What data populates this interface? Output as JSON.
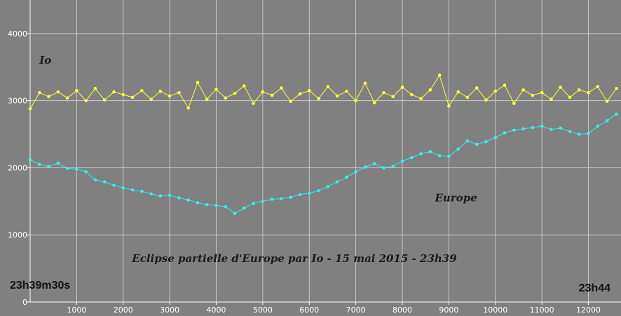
{
  "chart_data": {
    "type": "line",
    "title": "Eclipse partielle d'Europe par Io - 15 mai 2015 - 23h39",
    "start_label": "23h39m30s",
    "end_label": "23h44",
    "xlim": [
      0,
      12700
    ],
    "ylim": [
      0,
      4500
    ],
    "x_ticks": [
      "1000",
      "2000",
      "3000",
      "4000",
      "5000",
      "6000",
      "7000",
      "8000",
      "9000",
      "10000",
      "11000",
      "12000"
    ],
    "y_ticks": [
      "0",
      "1000",
      "2000",
      "3000",
      "4000"
    ],
    "grid": true,
    "colors": {
      "background": "#808080",
      "grid": "#c8c8c8",
      "io": "#ffff33",
      "europe": "#33eeee"
    },
    "series": [
      {
        "name": "Io",
        "label_at": [
          200,
          3550
        ],
        "x": [
          0,
          200,
          400,
          600,
          800,
          1000,
          1200,
          1400,
          1600,
          1800,
          2000,
          2200,
          2400,
          2600,
          2800,
          3000,
          3200,
          3400,
          3600,
          3800,
          4000,
          4200,
          4400,
          4600,
          4800,
          5000,
          5200,
          5400,
          5600,
          5800,
          6000,
          6200,
          6400,
          6600,
          6800,
          7000,
          7200,
          7400,
          7600,
          7800,
          8000,
          8200,
          8400,
          8600,
          8800,
          9000,
          9200,
          9400,
          9600,
          9800,
          10000,
          10200,
          10400,
          10600,
          10800,
          11000,
          11200,
          11400,
          11600,
          11800,
          12000,
          12200,
          12400,
          12600
        ],
        "values": [
          2880,
          3120,
          3060,
          3130,
          3040,
          3150,
          3000,
          3180,
          3010,
          3130,
          3090,
          3050,
          3150,
          3020,
          3140,
          3070,
          3120,
          2890,
          3270,
          3020,
          3170,
          3040,
          3110,
          3220,
          2960,
          3130,
          3080,
          3190,
          2990,
          3100,
          3150,
          3030,
          3210,
          3070,
          3140,
          3000,
          3260,
          2970,
          3120,
          3060,
          3200,
          3090,
          3030,
          3160,
          3380,
          2920,
          3130,
          3050,
          3190,
          3010,
          3140,
          3230,
          2960,
          3160,
          3080,
          3120,
          3020,
          3200,
          3050,
          3160,
          3120,
          3210,
          2990,
          3180
        ]
      },
      {
        "name": "Europe",
        "label_at": [
          8700,
          1500
        ],
        "x": [
          0,
          200,
          400,
          600,
          800,
          1000,
          1200,
          1400,
          1600,
          1800,
          2000,
          2200,
          2400,
          2600,
          2800,
          3000,
          3200,
          3400,
          3600,
          3800,
          4000,
          4200,
          4400,
          4600,
          4800,
          5000,
          5200,
          5400,
          5600,
          5800,
          6000,
          6200,
          6400,
          6600,
          6800,
          7000,
          7200,
          7400,
          7600,
          7800,
          8000,
          8200,
          8400,
          8600,
          8800,
          9000,
          9200,
          9400,
          9600,
          9800,
          10000,
          10200,
          10400,
          10600,
          10800,
          11000,
          11200,
          11400,
          11600,
          11800,
          12000,
          12200,
          12400,
          12600
        ],
        "values": [
          2120,
          2050,
          2020,
          2070,
          1990,
          1980,
          1940,
          1820,
          1790,
          1740,
          1700,
          1670,
          1650,
          1610,
          1580,
          1590,
          1550,
          1520,
          1480,
          1450,
          1440,
          1420,
          1320,
          1400,
          1470,
          1500,
          1530,
          1540,
          1560,
          1600,
          1620,
          1660,
          1720,
          1790,
          1860,
          1940,
          2010,
          2060,
          2000,
          2020,
          2100,
          2150,
          2210,
          2240,
          2180,
          2170,
          2280,
          2400,
          2350,
          2390,
          2450,
          2520,
          2560,
          2580,
          2600,
          2620,
          2570,
          2590,
          2540,
          2500,
          2510,
          2620,
          2700,
          2800
        ]
      }
    ]
  }
}
